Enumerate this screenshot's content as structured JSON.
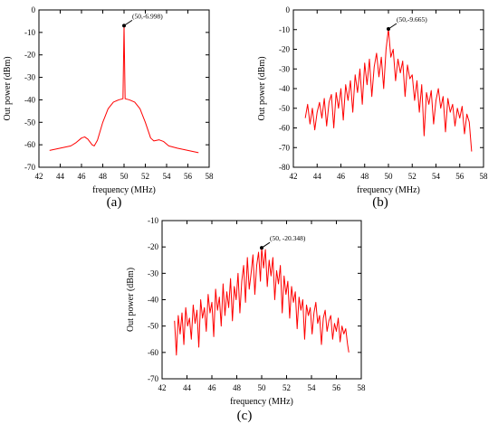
{
  "chart_data": [
    {
      "panel_label": "(a)",
      "type": "line",
      "xlabel": "frequency (MHz)",
      "ylabel": "Out power (dBm)",
      "xlim": [
        42,
        58
      ],
      "ylim": [
        -70,
        0
      ],
      "xticks": [
        42,
        44,
        46,
        48,
        50,
        52,
        54,
        56,
        58
      ],
      "yticks": [
        0,
        -10,
        -20,
        -30,
        -40,
        -50,
        -60,
        -70
      ],
      "series_color": "#ff0000",
      "annotation": {
        "text": "(50,-6.998)",
        "x": 50,
        "y": -6.998
      },
      "series": [
        {
          "x": [
            43,
            44,
            45,
            45.5,
            46,
            46.3,
            46.6,
            47,
            47.2,
            47.5,
            48,
            48.5,
            49,
            49.5,
            49.9,
            50,
            50.1,
            50.5,
            51,
            51.5,
            52,
            52.5,
            52.8,
            53.3,
            53.7,
            54.2,
            55,
            56,
            57
          ],
          "y": [
            -62.5,
            -61.5,
            -60.5,
            -59,
            -57,
            -56.5,
            -57.5,
            -60,
            -60.5,
            -58,
            -50,
            -44,
            -41,
            -40,
            -39.5,
            -6.998,
            -39.5,
            -40,
            -41,
            -44,
            -50,
            -57,
            -58.3,
            -57.8,
            -58.5,
            -60.5,
            -61.5,
            -62.5,
            -63.5
          ]
        }
      ]
    },
    {
      "panel_label": "(b)",
      "type": "line",
      "xlabel": "frequency (MHz)",
      "ylabel": "Out power (dBm)",
      "xlim": [
        42,
        58
      ],
      "ylim": [
        -80,
        0
      ],
      "xticks": [
        42,
        44,
        46,
        48,
        50,
        52,
        54,
        56,
        58
      ],
      "yticks": [
        0,
        -10,
        -20,
        -30,
        -40,
        -50,
        -60,
        -70,
        -80
      ],
      "series_color": "#ff0000",
      "annotation": {
        "text": "(50,-9.665)",
        "x": 50,
        "y": -9.665
      },
      "series": [
        {
          "x": [
            43,
            43.2,
            43.4,
            43.6,
            43.8,
            44,
            44.2,
            44.4,
            44.6,
            44.8,
            45,
            45.2,
            45.4,
            45.6,
            45.8,
            46,
            46.2,
            46.4,
            46.6,
            46.8,
            47,
            47.2,
            47.4,
            47.6,
            47.8,
            48,
            48.2,
            48.4,
            48.6,
            48.8,
            49,
            49.2,
            49.4,
            49.6,
            49.8,
            50,
            50.2,
            50.4,
            50.6,
            50.8,
            51,
            51.2,
            51.4,
            51.6,
            51.8,
            52,
            52.2,
            52.4,
            52.6,
            52.8,
            53,
            53.2,
            53.4,
            53.6,
            53.8,
            54,
            54.2,
            54.4,
            54.6,
            54.8,
            55,
            55.2,
            55.4,
            55.6,
            55.8,
            56,
            56.2,
            56.4,
            56.6,
            56.8,
            57
          ],
          "y": [
            -55,
            -48,
            -58,
            -50,
            -61,
            -52,
            -47,
            -55,
            -45,
            -59,
            -47,
            -43,
            -60,
            -42,
            -50,
            -40,
            -56,
            -38,
            -46,
            -36,
            -52,
            -33,
            -42,
            -30,
            -48,
            -27,
            -38,
            -25,
            -44,
            -29,
            -22,
            -34,
            -24,
            -40,
            -20,
            -9.665,
            -24,
            -20,
            -36,
            -25,
            -32,
            -26,
            -44,
            -28,
            -35,
            -33,
            -46,
            -36,
            -52,
            -38,
            -64,
            -42,
            -48,
            -41,
            -58,
            -46,
            -40,
            -50,
            -44,
            -62,
            -45,
            -52,
            -48,
            -59,
            -50,
            -55,
            -49,
            -63,
            -53,
            -57,
            -72
          ]
        }
      ]
    },
    {
      "panel_label": "(c)",
      "type": "line",
      "xlabel": "frequency (MHz)",
      "ylabel": "Out power (dBm)",
      "xlim": [
        42,
        58
      ],
      "ylim": [
        -70,
        -10
      ],
      "xticks": [
        42,
        44,
        46,
        48,
        50,
        52,
        54,
        56,
        58
      ],
      "yticks": [
        -10,
        -20,
        -30,
        -40,
        -50,
        -60,
        -70
      ],
      "series_color": "#ff0000",
      "annotation": {
        "text": "(50, -20.348)",
        "x": 50,
        "y": -20.348
      },
      "series": [
        {
          "x": [
            43,
            43.15,
            43.3,
            43.45,
            43.6,
            43.75,
            43.9,
            44.05,
            44.2,
            44.35,
            44.5,
            44.65,
            44.8,
            44.95,
            45.1,
            45.25,
            45.4,
            45.55,
            45.7,
            45.85,
            46,
            46.15,
            46.3,
            46.45,
            46.6,
            46.75,
            46.9,
            47.05,
            47.2,
            47.35,
            47.5,
            47.65,
            47.8,
            47.95,
            48.1,
            48.25,
            48.4,
            48.55,
            48.7,
            48.85,
            49,
            49.15,
            49.3,
            49.45,
            49.6,
            49.75,
            49.9,
            50,
            50.15,
            50.3,
            50.45,
            50.6,
            50.75,
            50.9,
            51.05,
            51.2,
            51.35,
            51.5,
            51.65,
            51.8,
            51.95,
            52.1,
            52.25,
            52.4,
            52.55,
            52.7,
            52.85,
            53,
            53.15,
            53.3,
            53.45,
            53.6,
            53.75,
            53.9,
            54.05,
            54.2,
            54.35,
            54.5,
            54.65,
            54.8,
            54.95,
            55.1,
            55.25,
            55.4,
            55.55,
            55.7,
            55.85,
            56,
            56.15,
            56.3,
            56.45,
            56.6,
            56.75,
            56.9,
            57
          ],
          "y": [
            -48,
            -61,
            -46,
            -53,
            -45,
            -57,
            -43,
            -50,
            -47,
            -55,
            -42,
            -49,
            -44,
            -58,
            -40,
            -47,
            -43,
            -52,
            -38,
            -45,
            -41,
            -54,
            -36,
            -44,
            -39,
            -50,
            -34,
            -46,
            -37,
            -43,
            -32,
            -48,
            -35,
            -40,
            -30,
            -45,
            -33,
            -27,
            -41,
            -24,
            -36,
            -30,
            -23,
            -38,
            -27,
            -22,
            -33,
            -20.348,
            -28,
            -21,
            -35,
            -25,
            -31,
            -24,
            -40,
            -29,
            -34,
            -27,
            -45,
            -31,
            -38,
            -33,
            -47,
            -35,
            -41,
            -37,
            -51,
            -39,
            -44,
            -40,
            -55,
            -42,
            -46,
            -43,
            -53,
            -45,
            -41,
            -49,
            -46,
            -57,
            -47,
            -44,
            -52,
            -48,
            -46,
            -55,
            -49,
            -52,
            -47,
            -56,
            -50,
            -53,
            -51,
            -57,
            -60
          ]
        }
      ]
    }
  ]
}
